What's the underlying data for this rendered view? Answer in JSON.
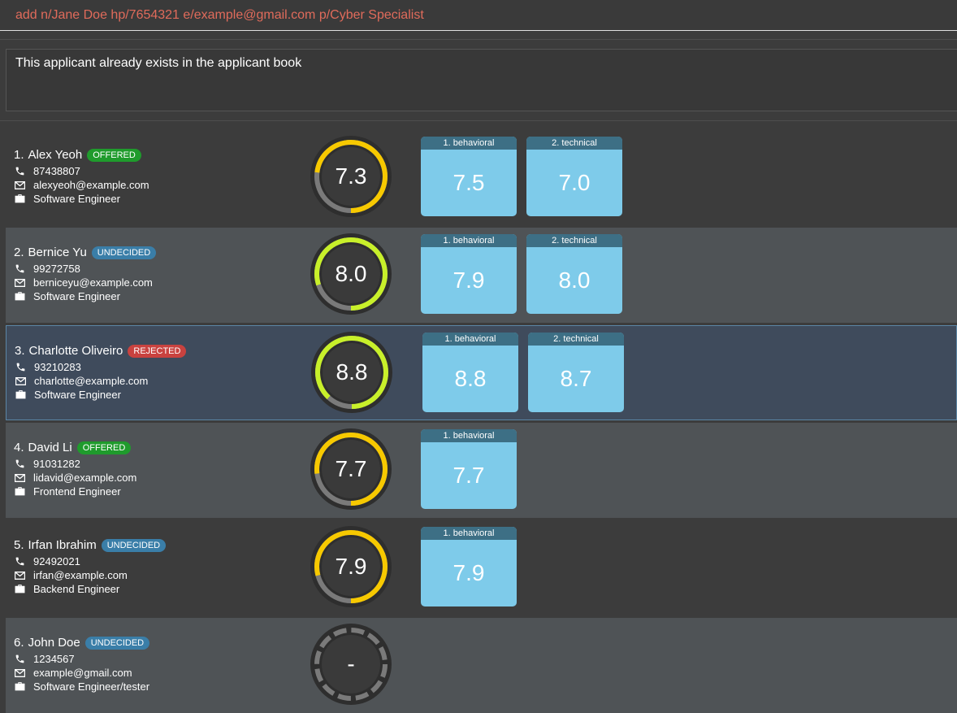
{
  "command": {
    "value": "add n/Jane Doe hp/7654321 e/example@gmail.com p/Cyber Specialist"
  },
  "result": {
    "message": "This applicant already exists in the applicant book"
  },
  "colors": {
    "offered": "#1f9b2c",
    "undecided": "#3a7ea8",
    "rejected": "#c9423f",
    "ring_yellow": "#f7c900",
    "ring_green": "#c8f02a",
    "ring_track": "#7a7a7a"
  },
  "applicants": [
    {
      "index": "1.",
      "name": "Alex Yeoh",
      "status": "OFFERED",
      "status_color": "#1f9b2c",
      "phone": "87438807",
      "email": "alexyeoh@example.com",
      "position": "Software Engineer",
      "rating": "7.3",
      "rating_value": 7.3,
      "ring_color": "#f7c900",
      "interviews": [
        {
          "label": "1. behavioral",
          "score": "7.5"
        },
        {
          "label": "2. technical",
          "score": "7.0"
        }
      ]
    },
    {
      "index": "2.",
      "name": "Bernice Yu",
      "status": "UNDECIDED",
      "status_color": "#3a7ea8",
      "phone": "99272758",
      "email": "berniceyu@example.com",
      "position": "Software Engineer",
      "rating": "8.0",
      "rating_value": 8.0,
      "ring_color": "#c8f02a",
      "interviews": [
        {
          "label": "1. behavioral",
          "score": "7.9"
        },
        {
          "label": "2. technical",
          "score": "8.0"
        }
      ]
    },
    {
      "index": "3.",
      "name": "Charlotte Oliveiro",
      "status": "REJECTED",
      "status_color": "#c9423f",
      "phone": "93210283",
      "email": "charlotte@example.com",
      "position": "Software Engineer",
      "rating": "8.8",
      "rating_value": 8.8,
      "ring_color": "#c8f02a",
      "interviews": [
        {
          "label": "1. behavioral",
          "score": "8.8"
        },
        {
          "label": "2. technical",
          "score": "8.7"
        }
      ]
    },
    {
      "index": "4.",
      "name": "David Li",
      "status": "OFFERED",
      "status_color": "#1f9b2c",
      "phone": "91031282",
      "email": "lidavid@example.com",
      "position": "Frontend Engineer",
      "rating": "7.7",
      "rating_value": 7.7,
      "ring_color": "#f7c900",
      "interviews": [
        {
          "label": "1. behavioral",
          "score": "7.7"
        }
      ]
    },
    {
      "index": "5.",
      "name": "Irfan Ibrahim",
      "status": "UNDECIDED",
      "status_color": "#3a7ea8",
      "phone": "92492021",
      "email": "irfan@example.com",
      "position": "Backend Engineer",
      "rating": "7.9",
      "rating_value": 7.9,
      "ring_color": "#f7c900",
      "interviews": [
        {
          "label": "1. behavioral",
          "score": "7.9"
        }
      ]
    },
    {
      "index": "6.",
      "name": "John Doe",
      "status": "UNDECIDED",
      "status_color": "#3a7ea8",
      "phone": "1234567",
      "email": "example@gmail.com",
      "position": "Software Engineer/tester",
      "rating": "-",
      "rating_value": null,
      "ring_color": "#7a7a7a",
      "interviews": []
    }
  ]
}
